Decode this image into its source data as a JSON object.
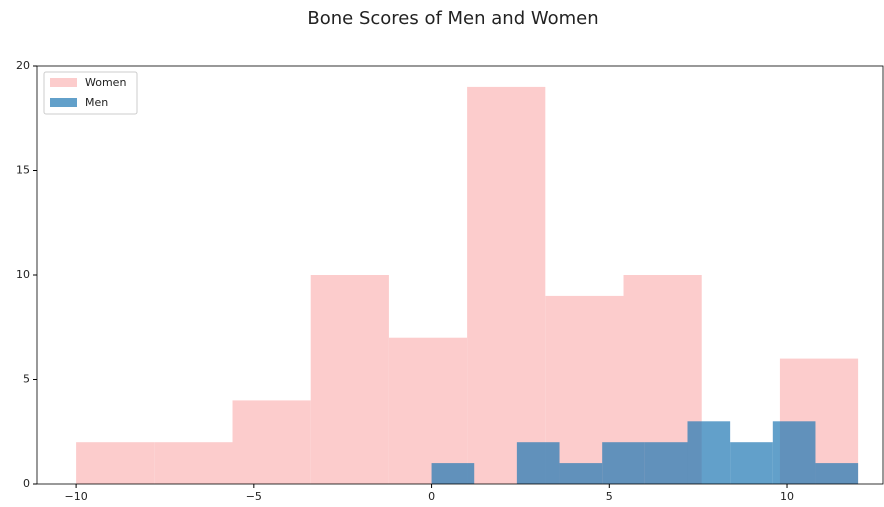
{
  "chart_data": {
    "type": "histogram",
    "title": "Bone Scores of Men and Women",
    "series": [
      {
        "name": "Women",
        "color": "#fccccc",
        "alpha": 1,
        "bins": [
          -10,
          -7.8,
          -5.6,
          -3.4,
          -1.2,
          1.0,
          3.2,
          5.4,
          7.6,
          9.8,
          12
        ],
        "counts": [
          2,
          2,
          4,
          10,
          7,
          19,
          9,
          10,
          0,
          6
        ]
      },
      {
        "name": "Men",
        "color": "#1f77b4",
        "alpha": 0.7,
        "bins": [
          0,
          1.2,
          2.4,
          3.6,
          4.8,
          6.0,
          7.2,
          8.4,
          9.6,
          10.8,
          12
        ],
        "counts": [
          1,
          0,
          2,
          1,
          2,
          2,
          3,
          2,
          3,
          1
        ]
      }
    ],
    "xlim": [
      -11.1,
      12.7
    ],
    "ylim": [
      0,
      20
    ],
    "xticks": [
      {
        "value": -10,
        "label": "−10"
      },
      {
        "value": -5,
        "label": "−5"
      },
      0,
      5,
      10
    ],
    "yticks": [
      0,
      5,
      10,
      15,
      20
    ],
    "legend": "upper left"
  }
}
